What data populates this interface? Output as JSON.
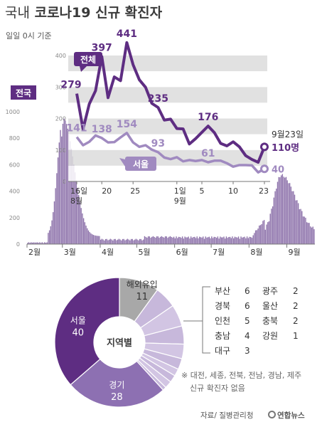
{
  "title": {
    "prefix": "국내",
    "main": "코로나19 신규 확진자"
  },
  "subtitle": "일일 0시 기준",
  "source": "자료/ 질병관리청",
  "credit": "연합뉴스",
  "colors": {
    "total": "#5e2d82",
    "seoul": "#a08ac0",
    "gray_band": "#dcdcdc",
    "national_bar": "#7a5b9c",
    "pie_light": "#c7b8db",
    "pie_gray": "#a8a8a8"
  },
  "chart_data": [
    {
      "type": "line",
      "x_start_labels": [
        "16일",
        "8월"
      ],
      "x_tick_labels": [
        "20",
        "25",
        "1일",
        "9월",
        "5",
        "10",
        "23"
      ],
      "ylim": [
        0,
        450
      ],
      "y_ticks": [
        0,
        100,
        200,
        300,
        400
      ],
      "grid": "alternating gray bands",
      "series": [
        {
          "name": "전체",
          "color": "#5e2d82",
          "values": [
            279,
            166,
            246,
            288,
            397,
            266,
            332,
            320,
            441,
            371,
            323,
            299,
            248,
            235,
            195,
            198,
            168,
            167,
            119,
            136,
            156,
            176,
            155,
            121,
            113,
            126,
            110,
            82,
            70,
            61,
            110
          ],
          "labels": [
            {
              "index": 0,
              "text": "279"
            },
            {
              "index": 4,
              "text": "397"
            },
            {
              "index": 8,
              "text": "441"
            },
            {
              "index": 13,
              "text": "235"
            },
            {
              "index": 21,
              "text": "176"
            }
          ],
          "end_label": {
            "date": "9월23일",
            "value": "110명"
          }
        },
        {
          "name": "서울",
          "color": "#a08ac0",
          "values": [
            141,
            115,
            126,
            146,
            138,
            124,
            125,
            140,
            154,
            124,
            110,
            115,
            101,
            93,
            76,
            71,
            77,
            64,
            68,
            65,
            68,
            61,
            66,
            66,
            58,
            47,
            52,
            52,
            51,
            29,
            40
          ],
          "labels": [
            {
              "index": 0,
              "text": "141"
            },
            {
              "index": 4,
              "text": "138"
            },
            {
              "index": 8,
              "text": "154"
            },
            {
              "index": 13,
              "text": "93"
            },
            {
              "index": 21,
              "text": "61"
            }
          ],
          "end_label": {
            "value": "40"
          }
        }
      ]
    },
    {
      "type": "bar",
      "series_name": "전국",
      "y_ticks": [
        0,
        200,
        400,
        600,
        800,
        1000
      ],
      "ylim": [
        0,
        1000
      ],
      "month_labels": [
        "2월",
        "3월",
        "4월",
        "5월",
        "6월",
        "7월",
        "8월",
        "9월"
      ]
    },
    {
      "type": "pie",
      "center_label": "지역별",
      "slices": [
        {
          "label": "해외유입",
          "value": 11,
          "color": "#a8a8a8"
        },
        {
          "label": "부산",
          "value": 6,
          "color": "#c7b8db"
        },
        {
          "label": "경북",
          "value": 6,
          "color": "#d2c5e3"
        },
        {
          "label": "인천",
          "value": 5,
          "color": "#c7b8db"
        },
        {
          "label": "충남",
          "value": 4,
          "color": "#d2c5e3"
        },
        {
          "label": "대구",
          "value": 3,
          "color": "#c7b8db"
        },
        {
          "label": "광주",
          "value": 2,
          "color": "#d2c5e3"
        },
        {
          "label": "울산",
          "value": 2,
          "color": "#c7b8db"
        },
        {
          "label": "충북",
          "value": 2,
          "color": "#d2c5e3"
        },
        {
          "label": "강원",
          "value": 1,
          "color": "#c7b8db"
        },
        {
          "label": "경기",
          "value": 28,
          "color": "#8d70b2"
        },
        {
          "label": "서울",
          "value": 40,
          "color": "#5e2d82"
        }
      ],
      "legend": [
        {
          "label": "부산",
          "value": "6"
        },
        {
          "label": "경북",
          "value": "6"
        },
        {
          "label": "인천",
          "value": "5"
        },
        {
          "label": "충남",
          "value": "4"
        },
        {
          "label": "대구",
          "value": "3"
        },
        {
          "label": "광주",
          "value": "2"
        },
        {
          "label": "울산",
          "value": "2"
        },
        {
          "label": "충북",
          "value": "2"
        },
        {
          "label": "강원",
          "value": "1"
        }
      ],
      "note": [
        "※ 대전, 세종, 전북, 전남, 경남, 제주",
        "신규 확진자 없음"
      ]
    }
  ]
}
